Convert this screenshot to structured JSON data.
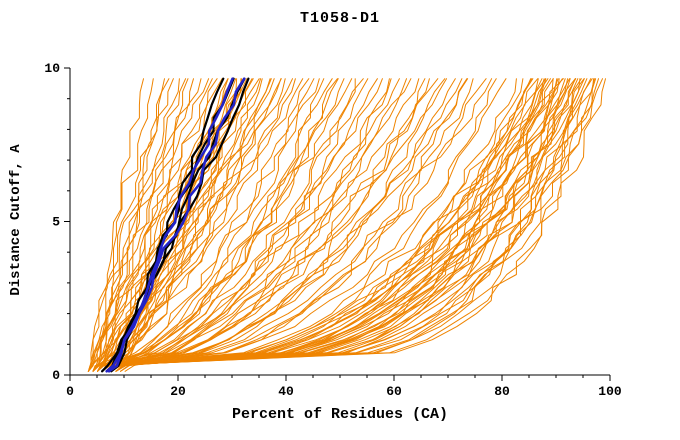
{
  "chart_data": {
    "type": "line",
    "title": "T1058-D1",
    "xlabel": "Percent of Residues (CA)",
    "ylabel": "Distance Cutoff, A",
    "xlim": [
      0,
      100
    ],
    "ylim": [
      0,
      10
    ],
    "x_ticks": [
      0,
      20,
      40,
      60,
      80,
      100
    ],
    "y_ticks": [
      0,
      5,
      10
    ],
    "x_minor_step": 5,
    "y_minor_step": 1,
    "grid": false,
    "legend": "none",
    "axis_color": "#000000",
    "background": "#ffffff",
    "curve_model": "x(y) = start + (end-start)*((y-y_start)/(ymax-y_start))^(1/shape); each curve listed as [start_percent, end_percent_at_10A, shape]",
    "y_start": 0.3,
    "y_end": 9.65,
    "jitter": {
      "seed": 7
    },
    "series_order": [
      "orange_models",
      "black_models",
      "blue_models"
    ],
    "series": {
      "orange_models": {
        "label": "predicted models",
        "color": "#ef8400",
        "width": 1,
        "jitter": 1.5,
        "curves": [
          [
            5,
            100,
            5.5
          ],
          [
            6,
            99,
            5.0
          ],
          [
            7,
            99,
            4.2
          ],
          [
            5,
            98,
            6.0
          ],
          [
            8,
            98,
            3.8
          ],
          [
            6,
            98,
            4.6
          ],
          [
            9,
            97,
            3.4
          ],
          [
            5,
            97,
            5.2
          ],
          [
            7,
            97,
            4.4
          ],
          [
            6,
            96,
            4.9
          ],
          [
            8,
            96,
            3.6
          ],
          [
            10,
            96,
            3.0
          ],
          [
            5,
            95,
            5.6
          ],
          [
            7,
            95,
            4.1
          ],
          [
            9,
            95,
            3.2
          ],
          [
            6,
            94,
            4.4
          ],
          [
            8,
            94,
            3.5
          ],
          [
            10,
            94,
            2.8
          ],
          [
            5,
            93,
            4.8
          ],
          [
            7,
            93,
            3.9
          ],
          [
            9,
            93,
            3.1
          ],
          [
            6,
            92,
            4.2
          ],
          [
            8,
            92,
            3.3
          ],
          [
            10,
            92,
            2.7
          ],
          [
            5,
            91,
            4.5
          ],
          [
            7,
            91,
            3.7
          ],
          [
            9,
            91,
            2.9
          ],
          [
            6,
            90,
            4.0
          ],
          [
            8,
            90,
            3.2
          ],
          [
            10,
            90,
            2.6
          ],
          [
            5,
            89,
            4.3
          ],
          [
            7,
            89,
            3.5
          ],
          [
            9,
            89,
            2.8
          ],
          [
            6,
            88,
            3.8
          ],
          [
            8,
            88,
            3.0
          ],
          [
            7,
            87,
            3.4
          ],
          [
            9,
            87,
            2.7
          ],
          [
            6,
            86,
            3.6
          ],
          [
            8,
            86,
            2.9
          ],
          [
            7,
            85,
            3.2
          ],
          [
            6,
            84,
            2.9
          ],
          [
            8,
            82,
            2.5
          ],
          [
            5,
            80,
            3.1
          ],
          [
            7,
            79,
            2.4
          ],
          [
            9,
            78,
            2.2
          ],
          [
            6,
            76,
            2.7
          ],
          [
            8,
            75,
            2.1
          ],
          [
            5,
            74,
            2.9
          ],
          [
            7,
            72,
            2.3
          ],
          [
            9,
            71,
            1.9
          ],
          [
            6,
            70,
            2.5
          ],
          [
            8,
            68,
            2.0
          ],
          [
            5,
            67,
            2.6
          ],
          [
            7,
            66,
            1.9
          ],
          [
            9,
            64,
            1.8
          ],
          [
            6,
            63,
            2.3
          ],
          [
            8,
            62,
            1.8
          ],
          [
            5,
            60,
            2.4
          ],
          [
            7,
            59,
            1.8
          ],
          [
            9,
            58,
            1.7
          ],
          [
            6,
            56,
            2.1
          ],
          [
            8,
            55,
            1.7
          ],
          [
            5,
            54,
            2.2
          ],
          [
            7,
            52,
            1.7
          ],
          [
            9,
            51,
            1.6
          ],
          [
            6,
            50,
            1.9
          ],
          [
            8,
            49,
            1.6
          ],
          [
            5,
            48,
            2.0
          ],
          [
            7,
            47,
            1.5
          ],
          [
            6,
            46,
            1.8
          ],
          [
            8,
            45,
            1.5
          ],
          [
            10,
            74,
            2.0
          ],
          [
            11,
            69,
            1.8
          ],
          [
            12,
            61,
            1.6
          ],
          [
            11,
            53,
            1.5
          ],
          [
            5,
            44,
            1.5
          ],
          [
            6,
            43,
            1.3
          ],
          [
            7,
            42,
            1.4
          ],
          [
            8,
            41,
            1.2
          ],
          [
            5,
            40,
            1.4
          ],
          [
            6,
            39,
            1.2
          ],
          [
            7,
            38,
            1.3
          ],
          [
            8,
            37,
            1.1
          ],
          [
            5,
            36,
            1.3
          ],
          [
            6,
            35,
            1.1
          ],
          [
            7,
            34,
            1.2
          ],
          [
            8,
            33,
            1.0
          ],
          [
            4,
            32,
            1.2
          ],
          [
            5,
            31,
            1.0
          ],
          [
            6,
            30,
            1.1
          ],
          [
            9,
            40,
            1.1
          ],
          [
            10,
            38,
            1.0
          ],
          [
            9,
            36,
            1.05
          ],
          [
            10,
            34,
            0.95
          ],
          [
            4,
            35,
            1.25
          ],
          [
            5,
            33,
            1.15
          ],
          [
            6,
            32,
            1.0
          ],
          [
            7,
            31,
            0.95
          ],
          [
            8,
            30,
            0.9
          ],
          [
            9,
            33,
            1.0
          ],
          [
            4,
            29,
            1.0
          ],
          [
            5,
            28,
            0.95
          ],
          [
            6,
            27,
            0.9
          ],
          [
            4,
            26,
            1.0
          ],
          [
            5,
            25,
            0.9
          ],
          [
            6,
            24,
            0.85
          ],
          [
            4,
            23,
            0.95
          ],
          [
            5,
            22,
            0.85
          ],
          [
            4,
            21,
            0.9
          ],
          [
            5,
            20,
            0.8
          ],
          [
            4,
            18,
            0.85
          ],
          [
            5,
            16,
            0.8
          ],
          [
            4,
            14,
            0.8
          ],
          [
            6,
            19,
            0.75
          ]
        ]
      },
      "black_models": {
        "label": "highlighted models (black)",
        "color": "#000000",
        "width": 2.2,
        "jitter": 0.8,
        "curves": [
          [
            7,
            34,
            1.08
          ],
          [
            8,
            33,
            1.0
          ],
          [
            8,
            31,
            0.97
          ],
          [
            9,
            29,
            1.02
          ]
        ]
      },
      "blue_models": {
        "label": "highlighted models (blue)",
        "color": "#2323c8",
        "width": 2.6,
        "jitter": 0.8,
        "curves": [
          [
            8,
            33,
            1.02
          ],
          [
            8.5,
            31,
            0.98
          ]
        ]
      }
    }
  }
}
